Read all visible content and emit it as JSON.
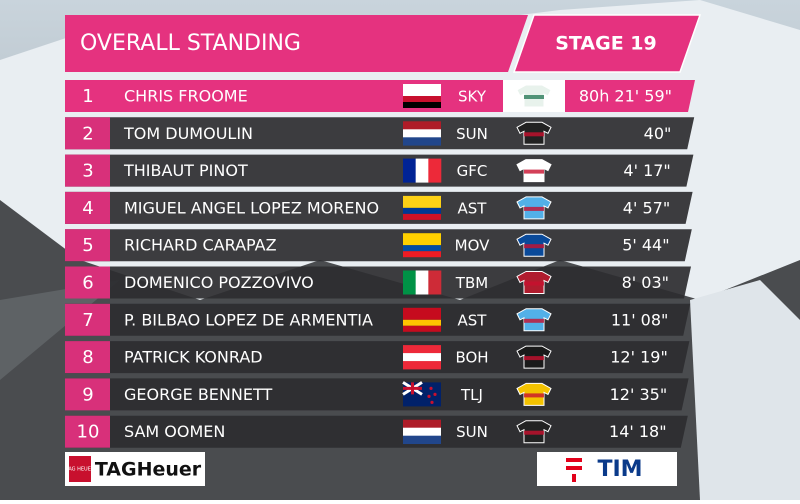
{
  "header": {
    "title": "OVERALL STANDING",
    "stage": "STAGE 19"
  },
  "standings": [
    {
      "rank": "1",
      "name": "CHRIS FROOME",
      "team": "SKY",
      "time": "80h 21' 59\""
    },
    {
      "rank": "2",
      "name": "TOM DUMOULIN",
      "team": "SUN",
      "time": "40\""
    },
    {
      "rank": "3",
      "name": "THIBAUT PINOT",
      "team": "GFC",
      "time": "4' 17\""
    },
    {
      "rank": "4",
      "name": "MIGUEL ANGEL LOPEZ MORENO",
      "team": "AST",
      "time": "4' 57\""
    },
    {
      "rank": "5",
      "name": "RICHARD CARAPAZ",
      "team": "MOV",
      "time": "5' 44\""
    },
    {
      "rank": "6",
      "name": "DOMENICO POZZOVIVO",
      "team": "TBM",
      "time": "8' 03\""
    },
    {
      "rank": "7",
      "name": "P. BILBAO LOPEZ DE ARMENTIA",
      "team": "AST",
      "time": "11' 08\""
    },
    {
      "rank": "8",
      "name": "PATRICK KONRAD",
      "team": "BOH",
      "time": "12' 19\""
    },
    {
      "rank": "9",
      "name": "GEORGE BENNETT",
      "team": "TLJ",
      "time": "12' 35\""
    },
    {
      "rank": "10",
      "name": "SAM OOMEN",
      "team": "SUN",
      "time": "14' 18\""
    }
  ],
  "sponsors": {
    "left_small": "TAG HEUER",
    "left": "TAGHeuer",
    "right": "TIM"
  }
}
